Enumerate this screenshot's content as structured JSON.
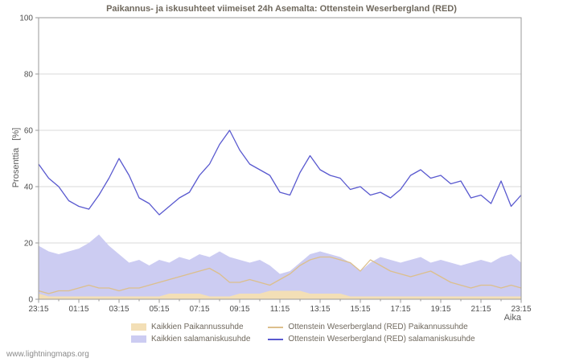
{
  "watermark": "www.lightningmaps.org",
  "legend": {
    "order": [
      1,
      0,
      2,
      3
    ]
  },
  "chart_data": {
    "type": "area",
    "title": "Paikannus- ja iskusuhteet viimeiset 24h Asemalta: Ottenstein Weserbergland (RED)",
    "ylabel": "Prosenttia   [%]",
    "xlabel": "Aika",
    "ylim": [
      0,
      100
    ],
    "y_ticks": [
      0,
      20,
      40,
      60,
      80,
      100
    ],
    "x_tick_labels": [
      "23:15",
      "01:15",
      "03:15",
      "05:15",
      "07:15",
      "09:15",
      "11:15",
      "13:15",
      "15:15",
      "17:15",
      "19:15",
      "21:15",
      "23:15"
    ],
    "grid": true,
    "legend_position": "bottom",
    "colors": {
      "grid": "#d9d9d9",
      "axis": "#9a9a9a",
      "text": "#4f4f4f"
    },
    "series": [
      {
        "name": "Kaikkien salamaniskusuhde",
        "style": "area",
        "color": "#ccccf2",
        "values": [
          19,
          17,
          16,
          17,
          18,
          20,
          23,
          19,
          16,
          13,
          14,
          12,
          14,
          13,
          15,
          14,
          16,
          15,
          17,
          15,
          14,
          13,
          14,
          12,
          9,
          10,
          13,
          16,
          17,
          16,
          15,
          13,
          10,
          13,
          15,
          14,
          13,
          14,
          15,
          13,
          14,
          13,
          12,
          13,
          14,
          13,
          15,
          16,
          13
        ]
      },
      {
        "name": "Kaikkien Paikannussuhde",
        "style": "area",
        "color": "#f3dfb6",
        "values": [
          2,
          1,
          1,
          1,
          1,
          1,
          1,
          1,
          1,
          1,
          1,
          1,
          1,
          2,
          2,
          2,
          2,
          1,
          1,
          1,
          2,
          2,
          2,
          3,
          3,
          3,
          3,
          2,
          2,
          2,
          2,
          1,
          1,
          1,
          1,
          1,
          1,
          1,
          1,
          1,
          1,
          1,
          1,
          1,
          1,
          1,
          1,
          1,
          1
        ]
      },
      {
        "name": "Ottenstein Weserbergland (RED) Paikannussuhde",
        "style": "line",
        "color": "#dcbf8c",
        "values": [
          3,
          2,
          3,
          3,
          4,
          5,
          4,
          4,
          3,
          4,
          4,
          5,
          6,
          7,
          8,
          9,
          10,
          11,
          9,
          6,
          6,
          7,
          6,
          5,
          7,
          9,
          12,
          14,
          15,
          15,
          14,
          13,
          10,
          14,
          12,
          10,
          9,
          8,
          9,
          10,
          8,
          6,
          5,
          4,
          5,
          5,
          4,
          5,
          4
        ]
      },
      {
        "name": "Ottenstein Weserbergland (RED) salamaniskusuhde",
        "style": "line",
        "color": "#5959cf",
        "values": [
          48,
          43,
          40,
          35,
          33,
          32,
          37,
          43,
          50,
          44,
          36,
          34,
          30,
          33,
          36,
          38,
          44,
          48,
          55,
          60,
          53,
          48,
          46,
          44,
          38,
          37,
          45,
          51,
          46,
          44,
          43,
          39,
          40,
          37,
          38,
          36,
          39,
          44,
          46,
          43,
          44,
          41,
          42,
          36,
          37,
          34,
          42,
          33,
          37
        ]
      }
    ]
  }
}
